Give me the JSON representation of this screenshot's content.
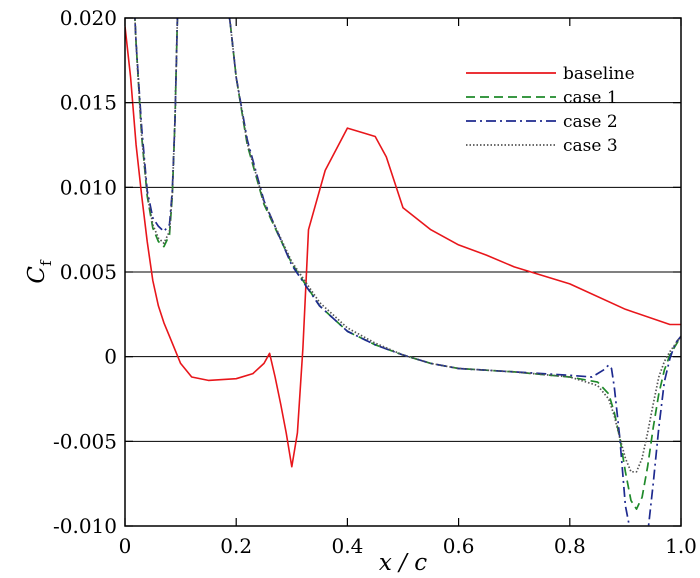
{
  "chart_data": {
    "type": "line",
    "title": "",
    "xlabel": "x / c",
    "ylabel": "C_f",
    "ylabel_main": "C",
    "ylabel_sub": "f",
    "xlim": [
      0,
      1.0
    ],
    "ylim": [
      -0.01,
      0.02
    ],
    "grid": "horizontal",
    "legend_position": "top-right",
    "x_ticks": [
      {
        "v": 0,
        "label": "0"
      },
      {
        "v": 0.2,
        "label": "0.2"
      },
      {
        "v": 0.4,
        "label": "0.4"
      },
      {
        "v": 0.6,
        "label": "0.6"
      },
      {
        "v": 0.8,
        "label": "0.8"
      },
      {
        "v": 1.0,
        "label": "1.0"
      }
    ],
    "y_ticks": [
      {
        "v": -0.01,
        "label": "-0.010"
      },
      {
        "v": -0.005,
        "label": "-0.005"
      },
      {
        "v": 0,
        "label": "0"
      },
      {
        "v": 0.005,
        "label": "0.005"
      },
      {
        "v": 0.01,
        "label": "0.010"
      },
      {
        "v": 0.015,
        "label": "0.015"
      },
      {
        "v": 0.02,
        "label": "0.020"
      }
    ],
    "series": [
      {
        "name": "baseline",
        "color": "#e8161b",
        "dash": "",
        "x": [
          0.0,
          0.01,
          0.02,
          0.03,
          0.04,
          0.05,
          0.06,
          0.07,
          0.08,
          0.1,
          0.12,
          0.15,
          0.2,
          0.23,
          0.25,
          0.26,
          0.27,
          0.28,
          0.29,
          0.3,
          0.31,
          0.32,
          0.33,
          0.36,
          0.4,
          0.43,
          0.45,
          0.47,
          0.5,
          0.55,
          0.6,
          0.65,
          0.7,
          0.8,
          0.9,
          0.98,
          1.0
        ],
        "y": [
          0.0195,
          0.0165,
          0.0125,
          0.0095,
          0.0068,
          0.0045,
          0.003,
          0.002,
          0.0012,
          -0.0004,
          -0.0012,
          -0.0014,
          -0.0013,
          -0.001,
          -0.0004,
          0.0002,
          -0.0012,
          -0.0028,
          -0.0045,
          -0.0065,
          -0.0045,
          0.0005,
          0.0075,
          0.011,
          0.0135,
          0.0132,
          0.013,
          0.0118,
          0.0088,
          0.0075,
          0.0066,
          0.006,
          0.0053,
          0.0043,
          0.0028,
          0.0019,
          0.0019
        ]
      },
      {
        "name": "case 1",
        "color": "#1f8a2a",
        "dash": "9,5",
        "x": [
          0.015,
          0.02,
          0.03,
          0.04,
          0.05,
          0.06,
          0.07,
          0.08,
          0.085,
          0.09,
          0.095,
          0.1,
          0.12,
          0.16,
          0.18,
          0.19,
          0.2,
          0.22,
          0.25,
          0.3,
          0.35,
          0.4,
          0.45,
          0.5,
          0.55,
          0.6,
          0.7,
          0.8,
          0.85,
          0.87,
          0.88,
          0.89,
          0.9,
          0.91,
          0.92,
          0.93,
          0.94,
          0.95,
          0.96,
          0.97,
          0.98,
          1.0
        ],
        "y": [
          0.022,
          0.0185,
          0.013,
          0.0095,
          0.0076,
          0.0068,
          0.0065,
          0.0072,
          0.0095,
          0.014,
          0.021,
          0.022,
          0.022,
          0.022,
          0.022,
          0.0195,
          0.0165,
          0.0125,
          0.009,
          0.0055,
          0.003,
          0.0015,
          0.0007,
          0.0001,
          -0.0004,
          -0.0007,
          -0.0009,
          -0.0012,
          -0.0015,
          -0.0022,
          -0.0033,
          -0.0048,
          -0.0068,
          -0.0085,
          -0.009,
          -0.0083,
          -0.0065,
          -0.0042,
          -0.0022,
          -0.0008,
          0.0001,
          0.0012
        ]
      },
      {
        "name": "case 2",
        "color": "#1e2a8f",
        "dash": "10,4,2,4",
        "x": [
          0.015,
          0.02,
          0.03,
          0.04,
          0.05,
          0.06,
          0.07,
          0.08,
          0.085,
          0.09,
          0.095,
          0.1,
          0.12,
          0.16,
          0.18,
          0.19,
          0.2,
          0.22,
          0.25,
          0.3,
          0.35,
          0.4,
          0.45,
          0.5,
          0.55,
          0.6,
          0.7,
          0.8,
          0.84,
          0.86,
          0.87,
          0.875,
          0.88,
          0.89,
          0.9,
          0.91,
          0.92,
          0.93,
          0.94,
          0.95,
          0.96,
          0.97,
          0.98,
          0.99,
          1.0
        ],
        "y": [
          0.022,
          0.0185,
          0.0135,
          0.0098,
          0.0082,
          0.0077,
          0.0074,
          0.0078,
          0.0098,
          0.014,
          0.021,
          0.022,
          0.022,
          0.022,
          0.022,
          0.0195,
          0.0165,
          0.0128,
          0.0092,
          0.0054,
          0.003,
          0.0015,
          0.0007,
          0.0001,
          -0.0004,
          -0.0007,
          -0.0009,
          -0.0011,
          -0.0012,
          -0.0008,
          -0.0005,
          -0.0007,
          -0.0018,
          -0.0048,
          -0.0088,
          -0.0105,
          -0.0105,
          -0.0105,
          -0.0105,
          -0.0075,
          -0.0042,
          -0.0015,
          -0.0001,
          0.0008,
          0.0012
        ]
      },
      {
        "name": "case 3",
        "color": "#555555",
        "dash": "1.5,2",
        "x": [
          0.015,
          0.02,
          0.03,
          0.04,
          0.05,
          0.06,
          0.07,
          0.08,
          0.085,
          0.09,
          0.095,
          0.1,
          0.12,
          0.16,
          0.18,
          0.19,
          0.2,
          0.22,
          0.25,
          0.3,
          0.35,
          0.4,
          0.45,
          0.5,
          0.55,
          0.6,
          0.7,
          0.8,
          0.85,
          0.87,
          0.88,
          0.89,
          0.9,
          0.91,
          0.92,
          0.93,
          0.94,
          0.95,
          0.96,
          0.97,
          0.98,
          1.0
        ],
        "y": [
          0.022,
          0.0185,
          0.013,
          0.0096,
          0.0078,
          0.007,
          0.0067,
          0.0074,
          0.0096,
          0.014,
          0.021,
          0.022,
          0.022,
          0.022,
          0.022,
          0.0195,
          0.0165,
          0.0126,
          0.0091,
          0.0056,
          0.0032,
          0.0017,
          0.0008,
          0.0001,
          -0.0004,
          -0.0007,
          -0.0009,
          -0.0012,
          -0.0017,
          -0.0025,
          -0.0035,
          -0.0048,
          -0.006,
          -0.0068,
          -0.0068,
          -0.006,
          -0.0045,
          -0.0028,
          -0.0012,
          -0.0003,
          0.0003,
          0.0012
        ]
      }
    ]
  }
}
